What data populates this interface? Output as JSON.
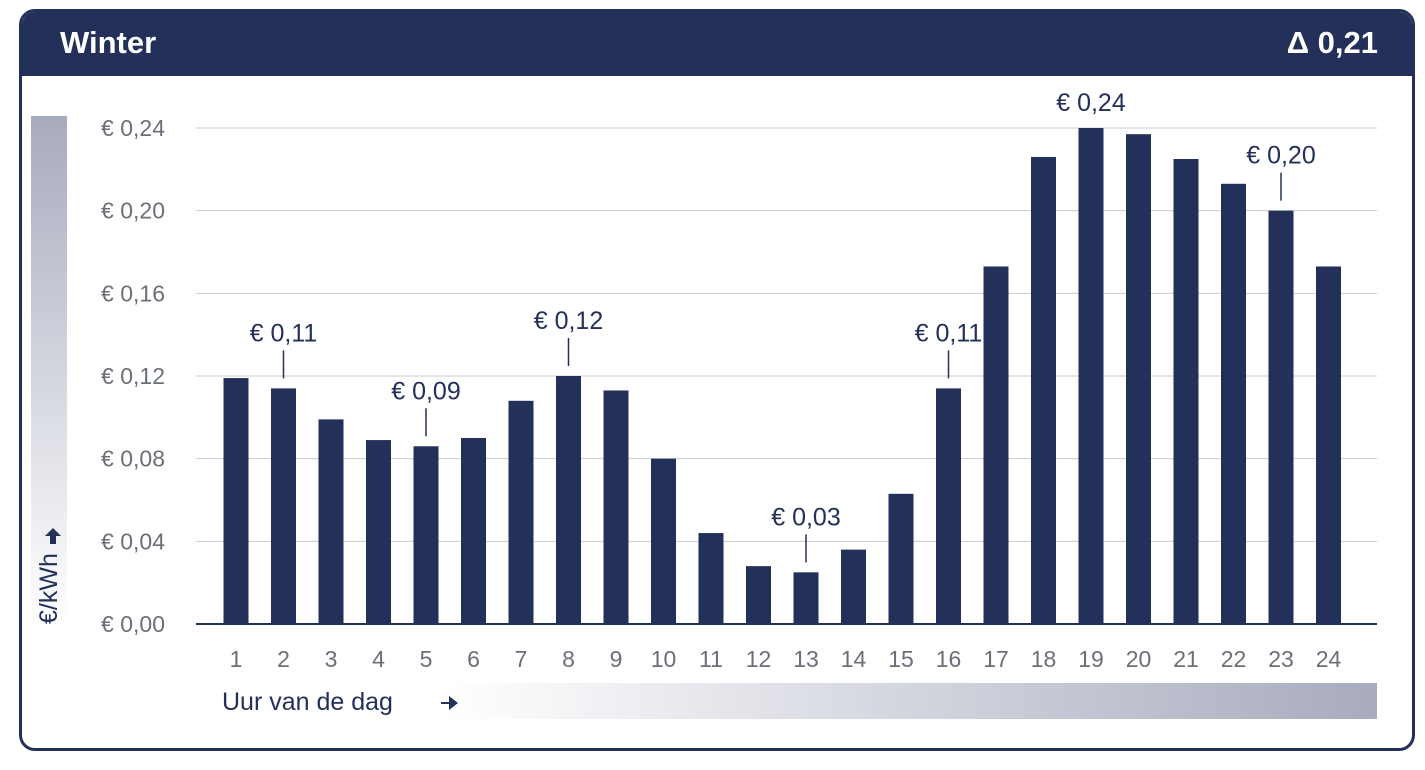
{
  "header": {
    "title": "Winter",
    "delta": "Δ 0,21"
  },
  "colors": {
    "bar": "#22305a",
    "header": "#22305a",
    "grid": "#c9cbd1",
    "tick": "#6b6f7a"
  },
  "chart_data": {
    "type": "bar",
    "categories": [
      "1",
      "2",
      "3",
      "4",
      "5",
      "6",
      "7",
      "8",
      "9",
      "10",
      "11",
      "12",
      "13",
      "14",
      "15",
      "16",
      "17",
      "18",
      "19",
      "20",
      "21",
      "22",
      "23",
      "24"
    ],
    "values": [
      0.119,
      0.114,
      0.099,
      0.089,
      0.086,
      0.09,
      0.108,
      0.12,
      0.113,
      0.08,
      0.044,
      0.028,
      0.025,
      0.036,
      0.063,
      0.114,
      0.173,
      0.226,
      0.24,
      0.237,
      0.225,
      0.213,
      0.2,
      0.173
    ],
    "ylim": [
      0,
      0.24
    ],
    "yticks": [
      "€ 0,00",
      "€ 0,04",
      "€ 0,08",
      "€ 0,12",
      "€ 0,16",
      "€ 0,20",
      "€ 0,24"
    ],
    "ylabel": "€/kWh",
    "xlabel": "Uur van de dag",
    "grid": true,
    "annotations": [
      {
        "hour": 2,
        "text": "€ 0,11"
      },
      {
        "hour": 5,
        "text": "€ 0,09"
      },
      {
        "hour": 8,
        "text": "€ 0,12"
      },
      {
        "hour": 13,
        "text": "€ 0,03"
      },
      {
        "hour": 16,
        "text": "€ 0,11"
      },
      {
        "hour": 19,
        "text": "€ 0,24"
      },
      {
        "hour": 23,
        "text": "€ 0,20"
      }
    ]
  }
}
